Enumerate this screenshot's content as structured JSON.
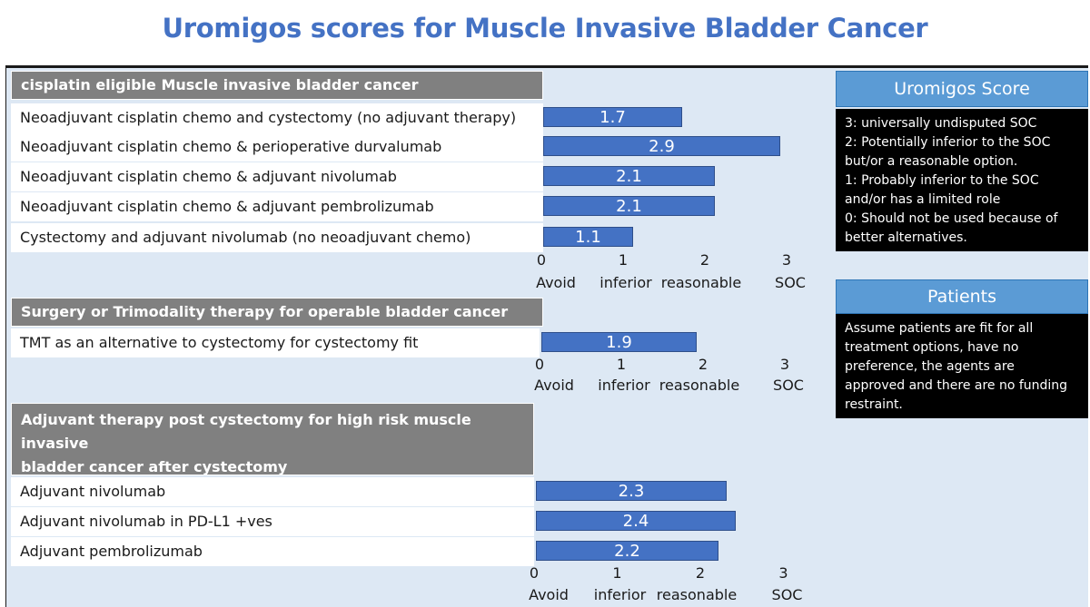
{
  "title": "Uromigos scores for Muscle Invasive Bladder Cancer",
  "score_legend": {
    "header": "Uromigos Score",
    "lines": [
      "3:  universally undisputed SOC",
      "2: Potentially inferior to the SOC",
      "but/or a reasonable option.",
      "1: Probably inferior to the SOC",
      "and/or has a limited role",
      "0: Should not be used because of",
      "better alternatives."
    ]
  },
  "patients": {
    "header": "Patients",
    "lines": [
      "Assume patients are fit for all",
      "treatment options, have no",
      "preference, the agents are",
      "approved and there are no funding",
      "restraint."
    ]
  },
  "axis": {
    "ticks": [
      "0",
      "1",
      "2",
      "3"
    ],
    "tick_words": [
      "Avoid",
      "inferior",
      "reasonable",
      "SOC"
    ],
    "range": [
      0,
      3
    ]
  },
  "colors": {
    "title": "#4472c4",
    "bar": "#4472c4",
    "panel_bg": "#dde8f4",
    "section_header_bg": "#808080",
    "side_header_bg": "#5b9bd5",
    "side_box_bg": "#000000"
  },
  "chart_data": [
    {
      "type": "bar",
      "orientation": "horizontal",
      "title": "cisplatin eligible Muscle invasive bladder cancer",
      "categories": [
        "Neoadjuvant cisplatin chemo and cystectomy (no adjuvant therapy)",
        "Neoadjuvant cisplatin chemo & perioperative durvalumab",
        "Neoadjuvant cisplatin  chemo & adjuvant nivolumab",
        "Neoadjuvant cisplatin chemo & adjuvant pembrolizumab",
        "Cystectomy and adjuvant nivolumab (no neoadjuvant chemo)"
      ],
      "values": [
        1.7,
        2.9,
        2.1,
        2.1,
        1.1
      ],
      "xlim": [
        0,
        3
      ]
    },
    {
      "type": "bar",
      "orientation": "horizontal",
      "title": "Surgery or Trimodality therapy for operable bladder cancer",
      "categories": [
        "TMT as an alternative to cystectomy for cystectomy fit"
      ],
      "values": [
        1.9
      ],
      "xlim": [
        0,
        3
      ]
    },
    {
      "type": "bar",
      "orientation": "horizontal",
      "title_lines": [
        "Adjuvant therapy post cystectomy for high risk muscle invasive",
        "bladder cancer after cystectomy"
      ],
      "categories": [
        "Adjuvant nivolumab",
        "Adjuvant nivolumab in PD-L1 +ves",
        "Adjuvant pembrolizumab"
      ],
      "values": [
        2.3,
        2.4,
        2.2
      ],
      "xlim": [
        0,
        3
      ]
    }
  ]
}
